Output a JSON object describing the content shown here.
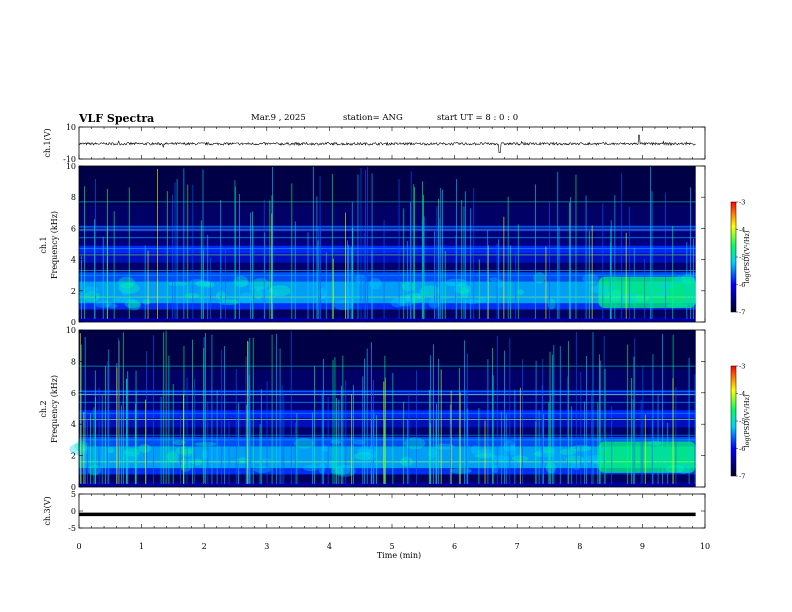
{
  "header": {
    "title": "VLF Spectra",
    "date": "Mar.9  , 2025",
    "station": "station= ANG",
    "start": "start  UT =   8  :  0   :  0"
  },
  "colors": {
    "spectrogram_stops": [
      "#00002a",
      "#0000ff",
      "#00cfff",
      "#00ff60",
      "#ffff00",
      "#ff0000"
    ],
    "trace": "#000000"
  },
  "chart_data": [
    {
      "type": "line",
      "name": "ch1-waveform",
      "ylabel": "ch.1(V)",
      "ylim": [
        -10,
        10
      ],
      "yticks": [
        "10",
        "-10"
      ],
      "baseline": -0.5,
      "xlim": [
        0,
        10
      ]
    },
    {
      "type": "heatmap",
      "name": "ch1-spectrogram",
      "ylabel_top": "ch.1",
      "ylabel": "Frequency  (kHz)",
      "ylim": [
        0,
        10
      ],
      "yticks": [
        "0",
        "2",
        "4",
        "6",
        "8",
        "10"
      ],
      "xlim": [
        0,
        9.85
      ],
      "colorbar": {
        "label": "log(PSD)(V²/Hz)",
        "range": [
          -7,
          -3
        ],
        "ticks": [
          "-3",
          "-4",
          "-5",
          "-6",
          "-7"
        ]
      },
      "bright_band_khz": [
        0.8,
        3.2
      ],
      "enhanced_after_min": 8.3
    },
    {
      "type": "heatmap",
      "name": "ch2-spectrogram",
      "ylabel_top": "ch.2",
      "ylabel": "Frequency  (kHz)",
      "ylim": [
        0,
        10
      ],
      "yticks": [
        "0",
        "2",
        "4",
        "6",
        "8",
        "10"
      ],
      "xlim": [
        0,
        9.85
      ],
      "colorbar": {
        "label": "log(PSD)(V²/Hz)",
        "range": [
          -7,
          -3
        ],
        "ticks": [
          "-3",
          "-4",
          "-5",
          "-6",
          "-7"
        ]
      },
      "bright_band_khz": [
        0.8,
        3.2
      ],
      "enhanced_after_min": 8.3
    },
    {
      "type": "line",
      "name": "ch3-waveform",
      "ylabel": "ch.3(V)",
      "ylim": [
        -5,
        5
      ],
      "yticks": [
        "5",
        "0",
        "-5"
      ],
      "baseline": -1,
      "xlim": [
        0,
        9.85
      ],
      "xlabel": "Time  (min)",
      "xticks": [
        "0",
        "1",
        "2",
        "3",
        "4",
        "5",
        "6",
        "7",
        "8",
        "9",
        "10"
      ]
    }
  ]
}
